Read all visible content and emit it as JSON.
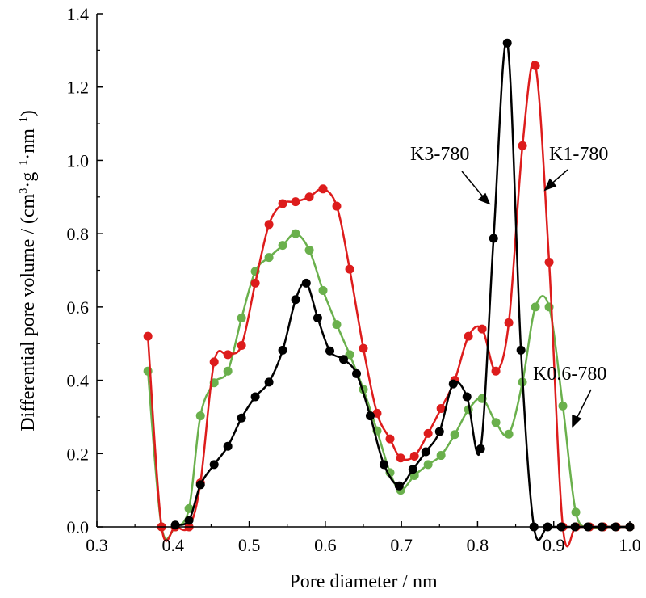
{
  "chart_data": {
    "type": "line",
    "title": "",
    "xlabel": "Pore diameter / nm",
    "ylabel_main": "Differential pore volume / (cm",
    "ylabel_sup1": "3",
    "ylabel_mid1": "·g",
    "ylabel_sup2": "−1",
    "ylabel_mid2": "·nm",
    "ylabel_sup3": "−1",
    "ylabel_end": ")",
    "xlim": [
      0.3,
      1.0
    ],
    "ylim": [
      0.0,
      1.4
    ],
    "xticks": [
      "0.3",
      "0.4",
      "0.5",
      "0.6",
      "0.7",
      "0.8",
      "0.9",
      "1.0"
    ],
    "yticks": [
      "0.0",
      "0.2",
      "0.4",
      "0.6",
      "0.8",
      "1.0",
      "1.2",
      "1.4"
    ],
    "grid": false,
    "series": [
      {
        "name": "K0.6-780",
        "color": "#6ab04c",
        "x": [
          0.367,
          0.385,
          0.403,
          0.421,
          0.436,
          0.454,
          0.472,
          0.49,
          0.508,
          0.526,
          0.544,
          0.561,
          0.579,
          0.597,
          0.615,
          0.632,
          0.65,
          0.668,
          0.685,
          0.699,
          0.717,
          0.735,
          0.752,
          0.77,
          0.788,
          0.806,
          0.824,
          0.841,
          0.859,
          0.876,
          0.894,
          0.912,
          0.929,
          0.947,
          0.965,
          0.982,
          1.0
        ],
        "y": [
          0.425,
          0.0,
          0.0,
          0.05,
          0.303,
          0.393,
          0.425,
          0.57,
          0.697,
          0.735,
          0.768,
          0.8,
          0.755,
          0.645,
          0.552,
          0.47,
          0.375,
          0.262,
          0.148,
          0.1,
          0.14,
          0.17,
          0.195,
          0.252,
          0.32,
          0.35,
          0.285,
          0.253,
          0.395,
          0.6,
          0.6,
          0.33,
          0.04,
          0.0,
          0.0,
          0.0,
          0.0
        ]
      },
      {
        "name": "K1-780",
        "color": "#dd1c1c",
        "x": [
          0.367,
          0.385,
          0.403,
          0.421,
          0.436,
          0.454,
          0.472,
          0.49,
          0.508,
          0.526,
          0.544,
          0.561,
          0.579,
          0.597,
          0.615,
          0.632,
          0.65,
          0.668,
          0.685,
          0.699,
          0.717,
          0.735,
          0.752,
          0.77,
          0.788,
          0.806,
          0.824,
          0.841,
          0.859,
          0.876,
          0.894,
          0.912,
          0.929,
          0.947,
          0.965,
          0.982,
          1.0
        ],
        "y": [
          0.52,
          0.0,
          0.0,
          0.0,
          0.12,
          0.45,
          0.47,
          0.495,
          0.665,
          0.825,
          0.882,
          0.887,
          0.9,
          0.922,
          0.875,
          0.703,
          0.487,
          0.31,
          0.24,
          0.188,
          0.193,
          0.255,
          0.323,
          0.4,
          0.52,
          0.54,
          0.425,
          0.557,
          1.04,
          1.258,
          0.722,
          0.0,
          0.0,
          0.0,
          0.0,
          0.0,
          0.0
        ]
      },
      {
        "name": "K3-780",
        "color": "#000000",
        "x": [
          0.403,
          0.421,
          0.436,
          0.454,
          0.472,
          0.49,
          0.508,
          0.526,
          0.544,
          0.561,
          0.575,
          0.59,
          0.606,
          0.624,
          0.641,
          0.659,
          0.677,
          0.697,
          0.715,
          0.732,
          0.75,
          0.768,
          0.786,
          0.804,
          0.821,
          0.839,
          0.857,
          0.874,
          0.892,
          0.91,
          0.928,
          0.945,
          0.963,
          0.981,
          1.0
        ],
        "y": [
          0.005,
          0.018,
          0.115,
          0.17,
          0.22,
          0.297,
          0.355,
          0.395,
          0.482,
          0.62,
          0.665,
          0.57,
          0.48,
          0.457,
          0.418,
          0.303,
          0.17,
          0.112,
          0.157,
          0.205,
          0.26,
          0.39,
          0.355,
          0.213,
          0.787,
          1.32,
          0.482,
          0.0,
          0.0,
          0.0,
          0.0,
          0.0,
          0.0,
          0.0,
          0.0
        ]
      }
    ],
    "annotations": [
      {
        "text": "K3-780"
      },
      {
        "text": "K1-780"
      },
      {
        "text": "K0.6-780"
      }
    ]
  }
}
